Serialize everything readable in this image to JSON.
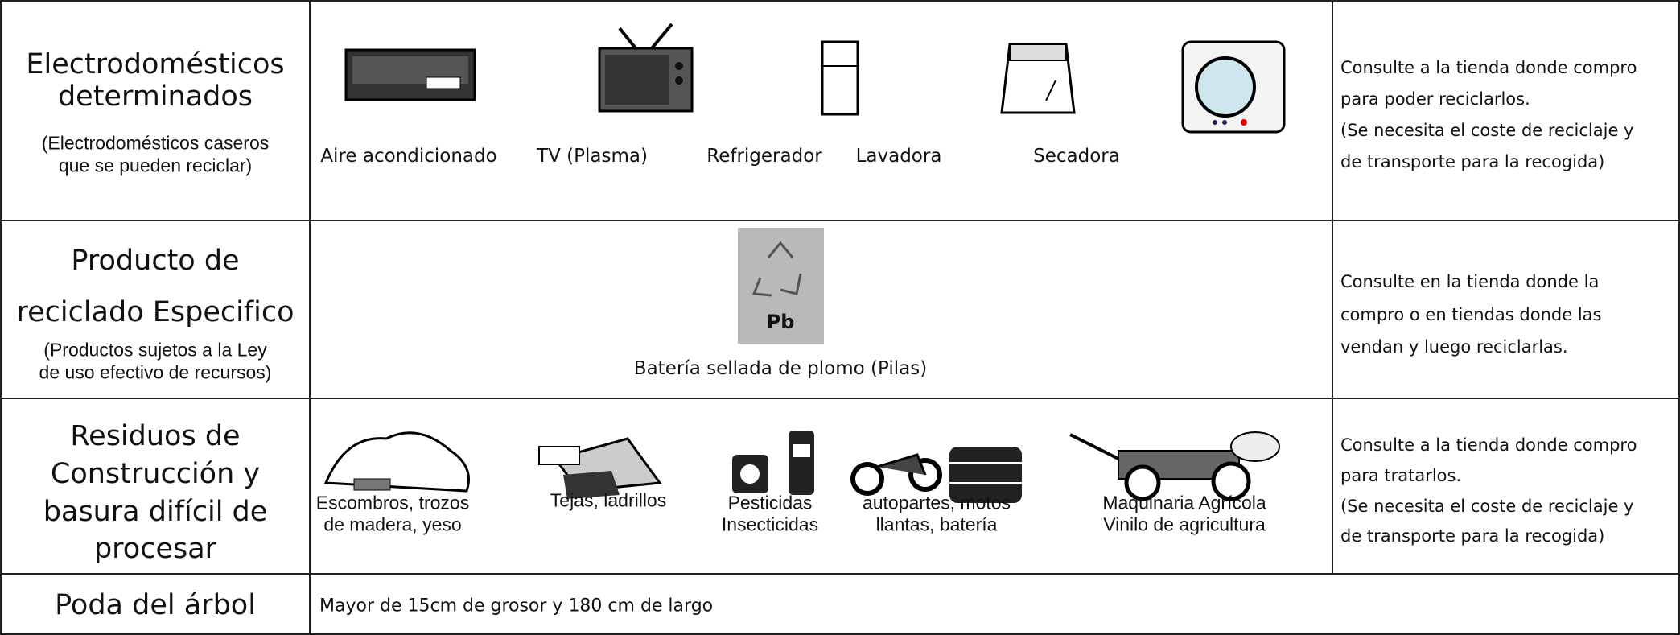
{
  "rows": [
    {
      "title": [
        "Electrodomésticos",
        "determinados"
      ],
      "subtitle": [
        "(Electrodomésticos caseros",
        "que se pueden reciclar)"
      ],
      "items": [
        "Aire acondicionado",
        "TV (Plasma)",
        "Refrigerador",
        "Lavadora",
        "Secadora"
      ],
      "note": [
        "Consulte a la tienda donde compro",
        "para poder reciclarlos.",
        "(Se necesita el coste de reciclaje y",
        "de transporte para la recogida)"
      ]
    },
    {
      "title": [
        "Producto de",
        "reciclado Especifico"
      ],
      "subtitle": [
        "(Productos sujetos a la Ley",
        "de uso efectivo de recursos)"
      ],
      "icon_text": "Pb",
      "items": [
        "Batería sellada de plomo (Pilas)"
      ],
      "note": [
        "Consulte en la tienda donde la",
        "compro o en tiendas donde las",
        "vendan y luego reciclarlas."
      ]
    },
    {
      "title": [
        "Residuos de",
        "Construcción y",
        "basura difícil de",
        "procesar"
      ],
      "items": [
        [
          "Escombros, trozos",
          "de madera, yeso"
        ],
        [
          "Tejas, ladrillos"
        ],
        [
          "Pesticidas",
          "Insecticidas"
        ],
        [
          "autopartes, motos",
          "llantas, batería"
        ],
        [
          "Maquinaria Agrícola",
          "Vinilo de agricultura"
        ]
      ],
      "note": [
        "Consulte a la tienda donde compro",
        "para tratarlos.",
        "(Se necesita el coste de reciclaje y",
        "de transporte para la recogida)"
      ]
    },
    {
      "title": [
        "Poda del árbol"
      ],
      "items": [
        "Mayor de 15cm de grosor y 180 cm de largo"
      ]
    }
  ]
}
